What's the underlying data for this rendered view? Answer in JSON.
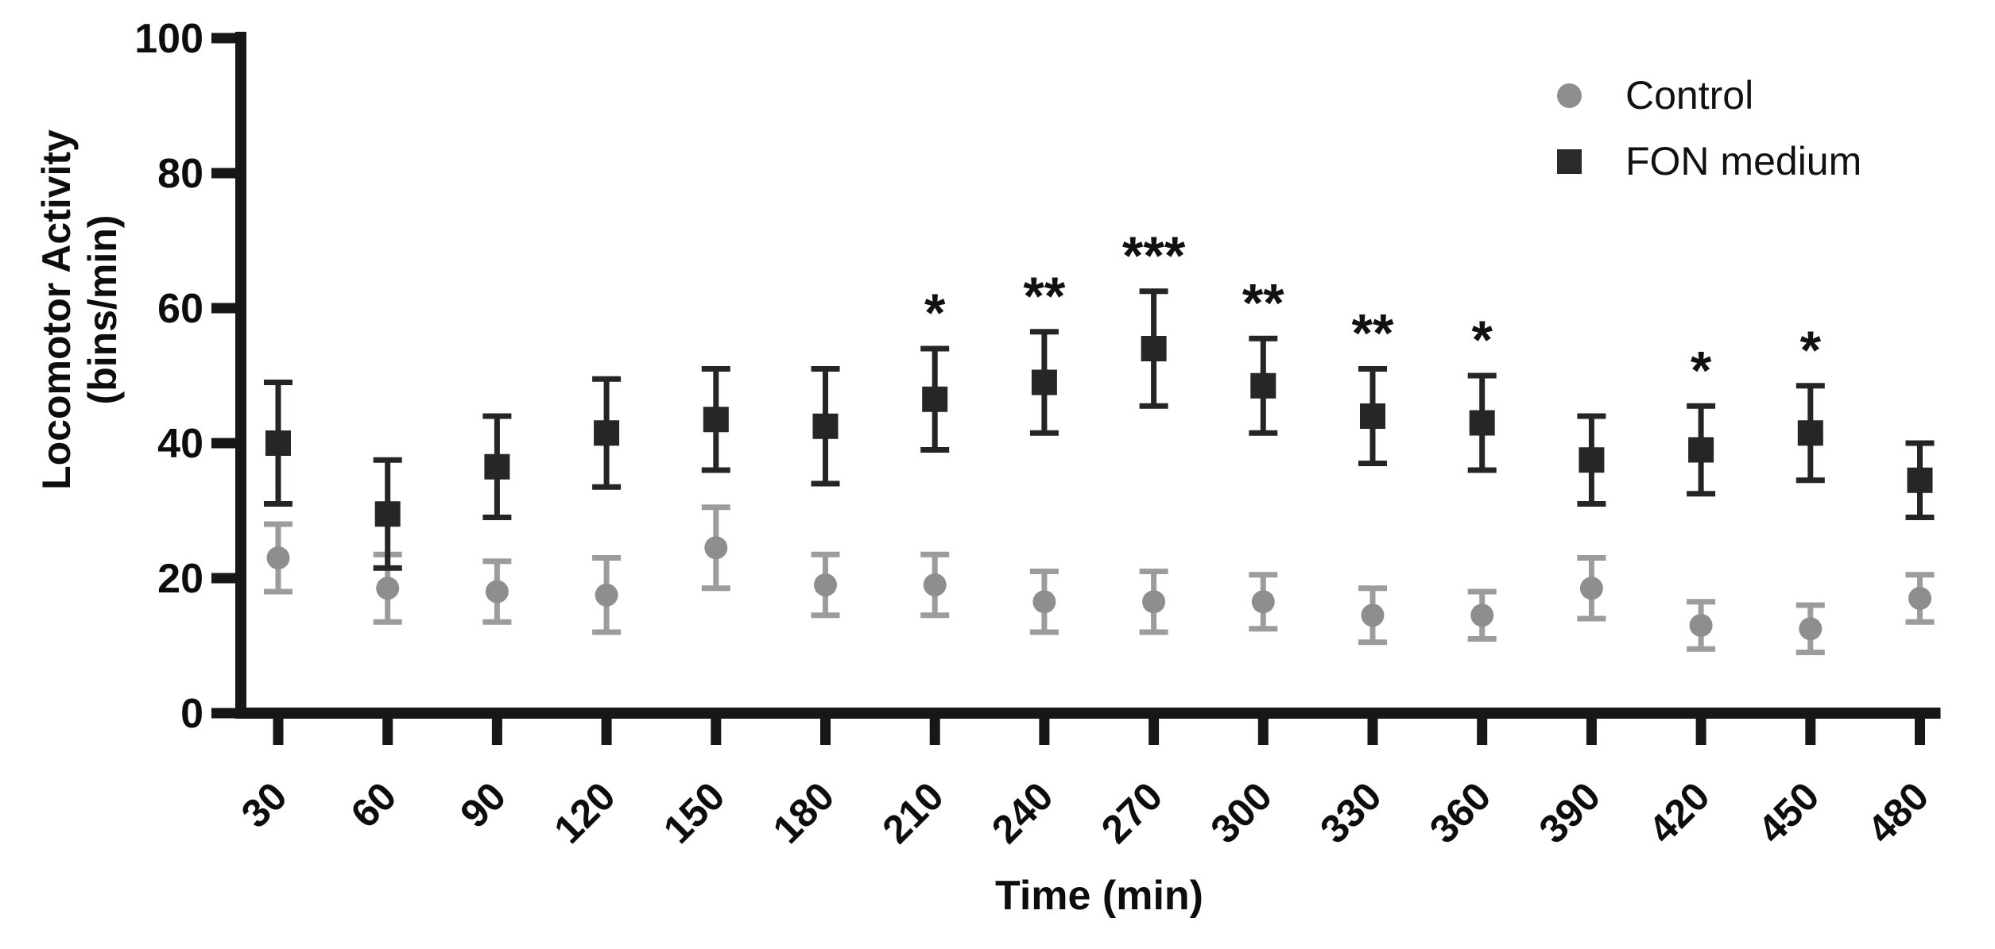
{
  "legend": {
    "items": [
      {
        "label": "Control",
        "marker": "circle",
        "color": "#8e8e8e"
      },
      {
        "label": "FON medium",
        "marker": "square",
        "color": "#2a2a2a"
      }
    ]
  },
  "chart_data": {
    "type": "scatter",
    "title": "",
    "xlabel": "Time (min)",
    "ylabel_line1": "Locomotor Activity",
    "ylabel_line2": "(bins/min)",
    "x": [
      30,
      60,
      90,
      120,
      150,
      180,
      210,
      240,
      270,
      300,
      330,
      360,
      390,
      420,
      450,
      480
    ],
    "ylim": [
      0,
      100
    ],
    "yticks": [
      0,
      20,
      40,
      60,
      80,
      100
    ],
    "grid": false,
    "legend_position": "top-right",
    "series": [
      {
        "name": "Control",
        "marker": "circle",
        "marker_color": "#8e8e8e",
        "error_color": "#9c9c9c",
        "values": [
          23,
          18.5,
          18,
          17.5,
          24.5,
          19,
          19,
          16.5,
          16.5,
          16.5,
          14.5,
          14.5,
          18.5,
          13,
          12.5,
          17
        ],
        "errors": [
          5,
          5,
          4.5,
          5.5,
          6,
          4.5,
          4.5,
          4.5,
          4.5,
          4,
          4,
          3.5,
          4.5,
          3.5,
          3.5,
          3.5
        ]
      },
      {
        "name": "FON medium",
        "marker": "square",
        "marker_color": "#262626",
        "error_color": "#222627",
        "values": [
          40,
          29.5,
          36.5,
          41.5,
          43.5,
          42.5,
          46.5,
          49,
          54,
          48.5,
          44,
          43,
          37.5,
          39,
          41.5,
          34.5
        ],
        "errors": [
          9,
          8,
          7.5,
          8,
          7.5,
          8.5,
          7.5,
          7.5,
          8.5,
          7,
          7,
          7,
          6.5,
          6.5,
          7,
          5.5
        ]
      }
    ],
    "significance": [
      {
        "x": 210,
        "label": "*"
      },
      {
        "x": 240,
        "label": "**"
      },
      {
        "x": 270,
        "label": "***"
      },
      {
        "x": 300,
        "label": "**"
      },
      {
        "x": 330,
        "label": "**"
      },
      {
        "x": 360,
        "label": "*"
      },
      {
        "x": 420,
        "label": "*"
      },
      {
        "x": 450,
        "label": "*"
      }
    ]
  }
}
